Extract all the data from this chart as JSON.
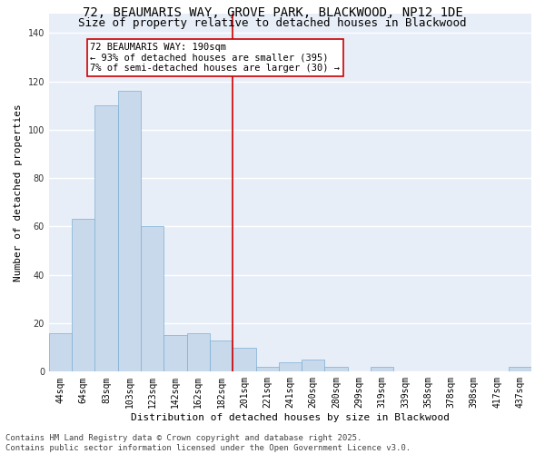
{
  "title_line1": "72, BEAUMARIS WAY, GROVE PARK, BLACKWOOD, NP12 1DE",
  "title_line2": "Size of property relative to detached houses in Blackwood",
  "xlabel": "Distribution of detached houses by size in Blackwood",
  "ylabel": "Number of detached properties",
  "bin_labels": [
    "44sqm",
    "64sqm",
    "83sqm",
    "103sqm",
    "123sqm",
    "142sqm",
    "162sqm",
    "182sqm",
    "201sqm",
    "221sqm",
    "241sqm",
    "260sqm",
    "280sqm",
    "299sqm",
    "319sqm",
    "339sqm",
    "358sqm",
    "378sqm",
    "398sqm",
    "417sqm",
    "437sqm"
  ],
  "bar_values": [
    16,
    63,
    110,
    116,
    60,
    15,
    16,
    13,
    10,
    2,
    4,
    5,
    2,
    0,
    2,
    0,
    0,
    0,
    0,
    0,
    2
  ],
  "bar_color": "#c9d9ec",
  "bar_edge_color": "#7bafd4",
  "vline_x": 7.5,
  "vline_color": "#cc0000",
  "annotation_text": "72 BEAUMARIS WAY: 190sqm\n← 93% of detached houses are smaller (395)\n7% of semi-detached houses are larger (30) →",
  "ylim": [
    0,
    148
  ],
  "yticks": [
    0,
    20,
    40,
    60,
    80,
    100,
    120,
    140
  ],
  "background_color": "#e8eef8",
  "grid_color": "#ffffff",
  "footer_text": "Contains HM Land Registry data © Crown copyright and database right 2025.\nContains public sector information licensed under the Open Government Licence v3.0.",
  "title_fontsize": 10,
  "subtitle_fontsize": 9,
  "axis_label_fontsize": 8,
  "tick_fontsize": 7,
  "annotation_fontsize": 7.5,
  "footer_fontsize": 6.5
}
